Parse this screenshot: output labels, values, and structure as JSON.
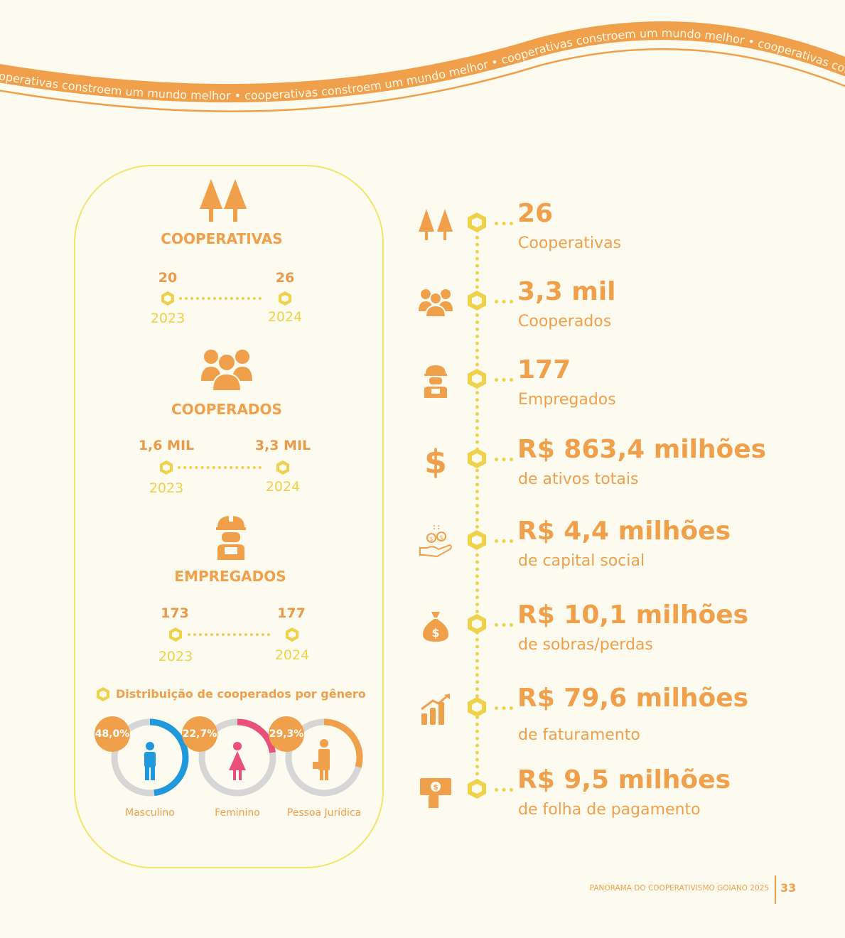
{
  "banner": {
    "text": "cooperativas constroem um mundo melhor • cooperativas constroem um mundo melhor • cooperativas constroem um mundo melhor • cooperativas constroem um mundo melhor •"
  },
  "left": {
    "cooperativas": {
      "title": "COOPERATIVAS",
      "v1": "20",
      "v2": "26",
      "y1": "2023",
      "y2": "2024"
    },
    "cooperados": {
      "title": "COOPERADOS",
      "v1": "1,6 MIL",
      "v2": "3,3 MIL",
      "y1": "2023",
      "y2": "2024"
    },
    "empregados": {
      "title": "EMPREGADOS",
      "v1": "173",
      "v2": "177",
      "y1": "2023",
      "y2": "2024"
    },
    "gender": {
      "title": "Distribuição de cooperados por gênero",
      "items": [
        {
          "label": "Masculino",
          "pct": "48,0%",
          "share": 0.48,
          "color": "#1f98dc"
        },
        {
          "label": "Feminino",
          "pct": "22,7%",
          "share": 0.227,
          "color": "#e9517c"
        },
        {
          "label": "Pessoa Jurídica",
          "pct": "29,3%",
          "share": 0.293,
          "color": "#f0a04b"
        }
      ]
    }
  },
  "right": [
    {
      "value": "26",
      "label": "Cooperativas",
      "icon": "trees-icon"
    },
    {
      "value": "3,3 mil",
      "label": "Cooperados",
      "icon": "people-icon"
    },
    {
      "value": "177",
      "label": "Empregados",
      "icon": "worker-icon"
    },
    {
      "value": "R$ 863,4 milhões",
      "label": "de ativos totais",
      "icon": "dollar-icon"
    },
    {
      "value": "R$ 4,4 milhões",
      "label": "de capital social",
      "icon": "hand-coins-icon"
    },
    {
      "value": "R$ 10,1 milhões",
      "label": "de sobras/perdas",
      "icon": "money-bag-icon"
    },
    {
      "value": "R$ 79,6 milhões",
      "label": "de faturamento",
      "icon": "growth-chart-icon"
    },
    {
      "value": "R$ 9,5 milhões",
      "label": "de folha de pagamento",
      "icon": "payroll-icon"
    }
  ],
  "footer": {
    "text": "PANORAMA DO COOPERATIVISMO GOIANO 2025",
    "page": "33"
  }
}
